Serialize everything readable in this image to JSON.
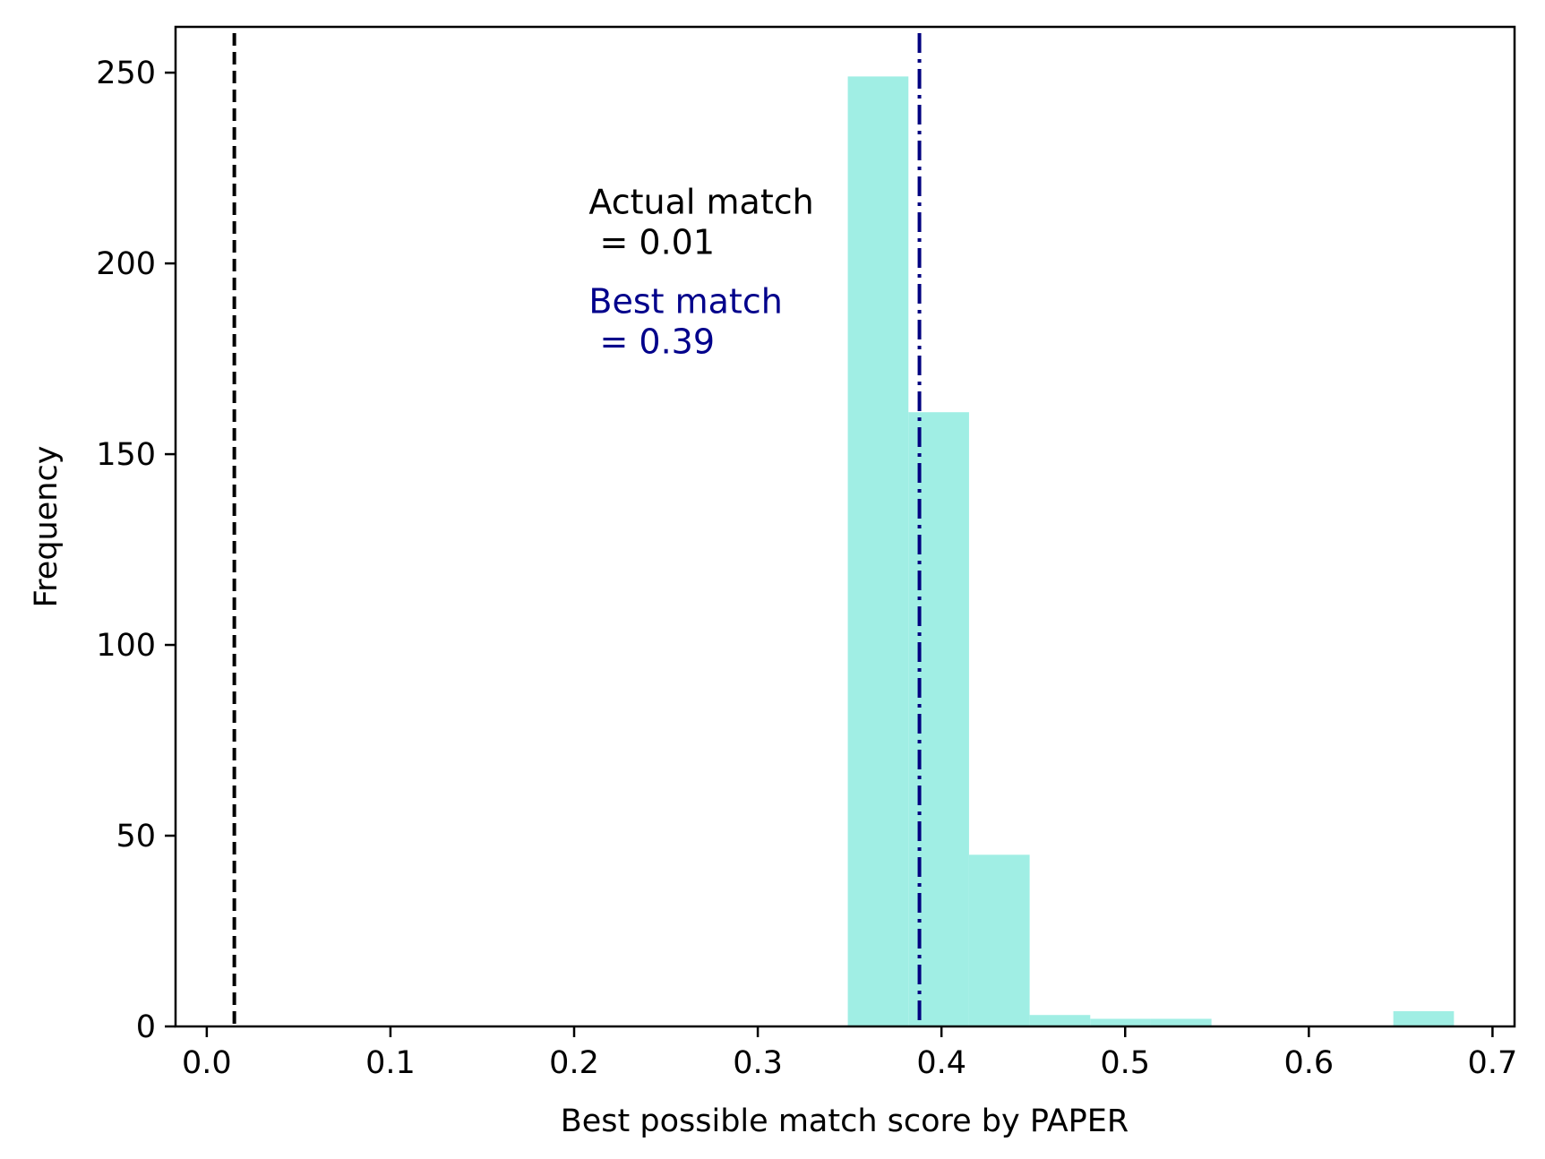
{
  "chart_data": {
    "type": "bar",
    "subtype": "histogram",
    "xlabel": "Best possible match score by PAPER",
    "ylabel": "Frequency",
    "xlim": [
      -0.017,
      0.712
    ],
    "ylim": [
      0,
      262
    ],
    "x_ticks": [
      {
        "value": 0.0,
        "label": "0.0"
      },
      {
        "value": 0.1,
        "label": "0.1"
      },
      {
        "value": 0.2,
        "label": "0.2"
      },
      {
        "value": 0.3,
        "label": "0.3"
      },
      {
        "value": 0.4,
        "label": "0.4"
      },
      {
        "value": 0.5,
        "label": "0.5"
      },
      {
        "value": 0.6,
        "label": "0.6"
      },
      {
        "value": 0.7,
        "label": "0.7"
      }
    ],
    "y_ticks": [
      {
        "value": 0,
        "label": "0"
      },
      {
        "value": 50,
        "label": "50"
      },
      {
        "value": 100,
        "label": "100"
      },
      {
        "value": 150,
        "label": "150"
      },
      {
        "value": 200,
        "label": "200"
      },
      {
        "value": 250,
        "label": "250"
      }
    ],
    "bins": [
      {
        "x0": 0.349,
        "x1": 0.382,
        "count": 249
      },
      {
        "x0": 0.382,
        "x1": 0.415,
        "count": 161
      },
      {
        "x0": 0.415,
        "x1": 0.448,
        "count": 45
      },
      {
        "x0": 0.448,
        "x1": 0.481,
        "count": 3
      },
      {
        "x0": 0.481,
        "x1": 0.514,
        "count": 2
      },
      {
        "x0": 0.514,
        "x1": 0.547,
        "count": 2
      },
      {
        "x0": 0.547,
        "x1": 0.58,
        "count": 0
      },
      {
        "x0": 0.58,
        "x1": 0.613,
        "count": 0
      },
      {
        "x0": 0.613,
        "x1": 0.646,
        "count": 0
      },
      {
        "x0": 0.646,
        "x1": 0.679,
        "count": 4
      }
    ],
    "bar_color": "#a0eee4",
    "reference_lines": [
      {
        "name": "actual-match",
        "x": 0.015,
        "style": "dashed",
        "color": "#000000"
      },
      {
        "name": "best-match",
        "x": 0.388,
        "style": "dashdot",
        "color": "#000080"
      }
    ],
    "annotations": [
      {
        "name": "actual-match",
        "lines": [
          "Actual match",
          " = 0.01"
        ],
        "color": "#000000",
        "x": 0.208,
        "y": 213
      },
      {
        "name": "best-match",
        "lines": [
          "Best match",
          " = 0.39"
        ],
        "color": "#00008b",
        "x": 0.208,
        "y": 187
      }
    ],
    "grid": false,
    "legend": "none"
  }
}
